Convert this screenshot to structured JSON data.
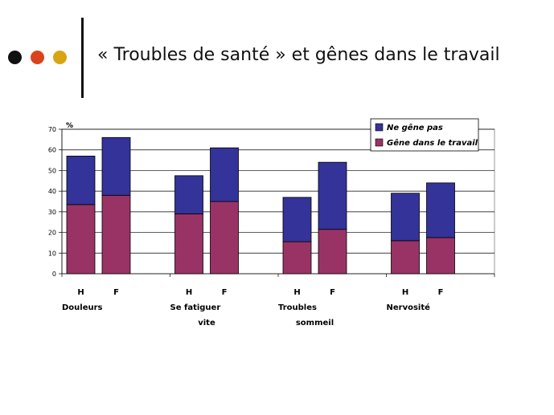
{
  "slide": {
    "title": "« Troubles de santé » et gênes dans le travail",
    "dot_colors": [
      "#111111",
      "#d9431b",
      "#d8a412"
    ]
  },
  "chart_data": {
    "type": "bar",
    "stacked": true,
    "ylabel": "%",
    "ylim": [
      0,
      70
    ],
    "yticks": [
      0,
      10,
      20,
      30,
      40,
      50,
      60,
      70
    ],
    "grid": true,
    "legend_position": "top-right",
    "categories": [
      "H",
      "F",
      "H",
      "F",
      "H",
      "F",
      "H",
      "F"
    ],
    "groups": [
      {
        "label_lines": [
          "Douleurs"
        ]
      },
      {
        "label_lines": [
          "Se fatiguer",
          "vite"
        ]
      },
      {
        "label_lines": [
          "Troubles",
          "sommeil"
        ]
      },
      {
        "label_lines": [
          "Nervosité"
        ]
      }
    ],
    "series": [
      {
        "name": "Gêne dans le travail",
        "color": "#993366",
        "values": [
          33.5,
          38,
          29,
          35,
          15.5,
          21.5,
          16,
          17.5
        ]
      },
      {
        "name": "Ne gêne pas",
        "color": "#333399",
        "values": [
          23.5,
          28,
          18.5,
          26,
          21.5,
          32.5,
          23,
          26.5
        ]
      }
    ],
    "legend_order": [
      1,
      0
    ]
  }
}
